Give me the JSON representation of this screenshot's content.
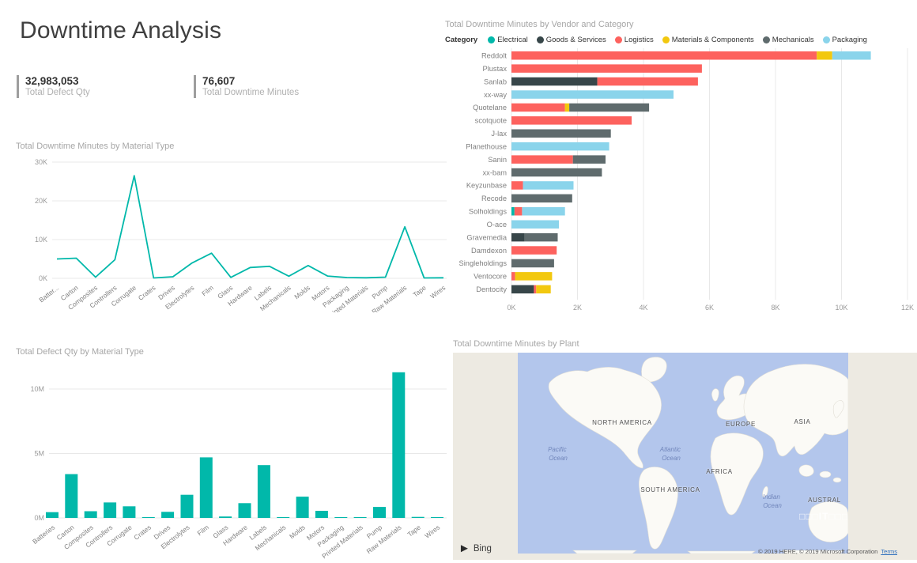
{
  "page": {
    "title": "Downtime Analysis"
  },
  "kpis": [
    {
      "value": "32,983,053",
      "label": "Total Defect Qty"
    },
    {
      "value": "76,607",
      "label": "Total Downtime Minutes"
    }
  ],
  "theme": {
    "accent": "#01B8AA",
    "panel_title_color": "#a6a6a6",
    "gridline_color": "#e8e8e8"
  },
  "chart_data": [
    {
      "id": "downtime-by-material",
      "type": "line",
      "title": "Total Downtime Minutes by Material Type",
      "categories": [
        "Batteries",
        "Carton",
        "Composites",
        "Controllers",
        "Corrugate",
        "Crates",
        "Drives",
        "Electrolytes",
        "Film",
        "Glass",
        "Hardware",
        "Labels",
        "Mechanicals",
        "Molds",
        "Motors",
        "Packaging",
        "Printed Materials",
        "Pump",
        "Raw Materials",
        "Tape",
        "Wires"
      ],
      "x_tick_labels": [
        "Batter...",
        "Carton",
        "Composites",
        "Controllers",
        "Corrugate",
        "Crates",
        "Drives",
        "Electrolytes",
        "Film",
        "Glass",
        "Hardware",
        "Labels",
        "Mechanicals",
        "Molds",
        "Motors",
        "Packaging",
        "Printed Materials",
        "Pump",
        "Raw Materials",
        "Tape",
        "Wires"
      ],
      "values": [
        5000,
        5200,
        300,
        4800,
        26500,
        100,
        400,
        4000,
        6500,
        250,
        2800,
        3100,
        550,
        3300,
        600,
        200,
        150,
        300,
        13300,
        100,
        150
      ],
      "y_ticks": [
        "0K",
        "10K",
        "20K",
        "30K"
      ],
      "ylim": [
        0,
        30000
      ],
      "grid": true,
      "line_color": "#01B8AA"
    },
    {
      "id": "downtime-by-vendor-and-category",
      "type": "stacked-bar-horizontal",
      "title": "Total Downtime Minutes by Vendor and Category",
      "legend_title": "Category",
      "legend_position": "top",
      "legend": [
        {
          "label": "Electrical",
          "color": "#01B8AA"
        },
        {
          "label": "Goods & Services",
          "color": "#374649"
        },
        {
          "label": "Logistics",
          "color": "#FD625E"
        },
        {
          "label": "Materials & Components",
          "color": "#F2C80F"
        },
        {
          "label": "Mechanicals",
          "color": "#5F6B6D"
        },
        {
          "label": "Packaging",
          "color": "#8AD4EB"
        }
      ],
      "x_ticks": [
        "0K",
        "2K",
        "4K",
        "6K",
        "8K",
        "10K",
        "12K"
      ],
      "xlim": [
        0,
        12000
      ],
      "vendors": [
        {
          "name": "Reddolt",
          "segments": [
            {
              "category": "Logistics",
              "value": 9250
            },
            {
              "category": "Materials & Components",
              "value": 470
            },
            {
              "category": "Packaging",
              "value": 1170
            }
          ]
        },
        {
          "name": "Plustax",
          "segments": [
            {
              "category": "Logistics",
              "value": 5770
            }
          ]
        },
        {
          "name": "Sanlab",
          "segments": [
            {
              "category": "Goods & Services",
              "value": 2600
            },
            {
              "category": "Logistics",
              "value": 3050
            }
          ]
        },
        {
          "name": "xx-way",
          "segments": [
            {
              "category": "Packaging",
              "value": 4910
            }
          ]
        },
        {
          "name": "Quotelane",
          "segments": [
            {
              "category": "Logistics",
              "value": 1620
            },
            {
              "category": "Materials & Components",
              "value": 130
            },
            {
              "category": "Mechanicals",
              "value": 2420
            }
          ]
        },
        {
          "name": "scotquote",
          "segments": [
            {
              "category": "Logistics",
              "value": 3640
            }
          ]
        },
        {
          "name": "J-lax",
          "segments": [
            {
              "category": "Mechanicals",
              "value": 3010
            }
          ]
        },
        {
          "name": "Planethouse",
          "segments": [
            {
              "category": "Packaging",
              "value": 2960
            }
          ]
        },
        {
          "name": "Sanin",
          "segments": [
            {
              "category": "Logistics",
              "value": 1860
            },
            {
              "category": "Mechanicals",
              "value": 990
            }
          ]
        },
        {
          "name": "xx-bam",
          "segments": [
            {
              "category": "Mechanicals",
              "value": 2740
            }
          ]
        },
        {
          "name": "Keyzunbase",
          "segments": [
            {
              "category": "Logistics",
              "value": 350
            },
            {
              "category": "Packaging",
              "value": 1530
            }
          ]
        },
        {
          "name": "Recode",
          "segments": [
            {
              "category": "Mechanicals",
              "value": 1840
            }
          ]
        },
        {
          "name": "Solholdings",
          "segments": [
            {
              "category": "Electrical",
              "value": 90
            },
            {
              "category": "Logistics",
              "value": 230
            },
            {
              "category": "Packaging",
              "value": 1300
            }
          ]
        },
        {
          "name": "O-ace",
          "segments": [
            {
              "category": "Packaging",
              "value": 1440
            }
          ]
        },
        {
          "name": "Gravemedia",
          "segments": [
            {
              "category": "Goods & Services",
              "value": 400
            },
            {
              "category": "Mechanicals",
              "value": 1000
            }
          ]
        },
        {
          "name": "Damdexon",
          "segments": [
            {
              "category": "Logistics",
              "value": 1370
            }
          ]
        },
        {
          "name": "Singleholdings",
          "segments": [
            {
              "category": "Mechanicals",
              "value": 1290
            }
          ]
        },
        {
          "name": "Ventocore",
          "segments": [
            {
              "category": "Logistics",
              "value": 110
            },
            {
              "category": "Materials & Components",
              "value": 1120
            }
          ]
        },
        {
          "name": "Dentocity",
          "segments": [
            {
              "category": "Goods & Services",
              "value": 680
            },
            {
              "category": "Logistics",
              "value": 70
            },
            {
              "category": "Materials & Components",
              "value": 440
            }
          ]
        }
      ]
    },
    {
      "id": "defect-qty-by-material",
      "type": "bar",
      "title": "Total Defect Qty by Material Type",
      "categories": [
        "Batteries",
        "Carton",
        "Composites",
        "Controllers",
        "Corrugate",
        "Crates",
        "Drives",
        "Electrolytes",
        "Film",
        "Glass",
        "Hardware",
        "Labels",
        "Mechanicals",
        "Molds",
        "Motors",
        "Packaging",
        "Printed Materials",
        "Pump",
        "Raw Materials",
        "Tape",
        "Wires"
      ],
      "values": [
        450000,
        3400000,
        520000,
        1200000,
        900000,
        60000,
        470000,
        1800000,
        4700000,
        110000,
        1150000,
        4100000,
        70000,
        1650000,
        550000,
        60000,
        70000,
        850000,
        11300000,
        80000,
        60000
      ],
      "y_ticks": [
        "0M",
        "5M",
        "10M"
      ],
      "ylim": [
        0,
        12200000
      ],
      "grid": true,
      "bar_color": "#01B8AA"
    },
    {
      "id": "downtime-by-plant",
      "type": "map",
      "title": "Total Downtime Minutes by Plant",
      "provider": "Bing",
      "labels": {
        "continents": [
          "NORTH AMERICA",
          "EUROPE",
          "ASIA",
          "AFRICA",
          "SOUTH AMERICA",
          "AUSTRAL"
        ],
        "oceans": [
          {
            "line1": "Pacific",
            "line2": "Ocean"
          },
          {
            "line1": "Atlantic",
            "line2": "Ocean"
          },
          {
            "line1": "Indian",
            "line2": "Ocean"
          }
        ]
      },
      "watermark": "□□□IT□□□",
      "attribution": "© 2019 HERE, © 2019 Microsoft Corporation",
      "terms_label": "Terms"
    }
  ]
}
